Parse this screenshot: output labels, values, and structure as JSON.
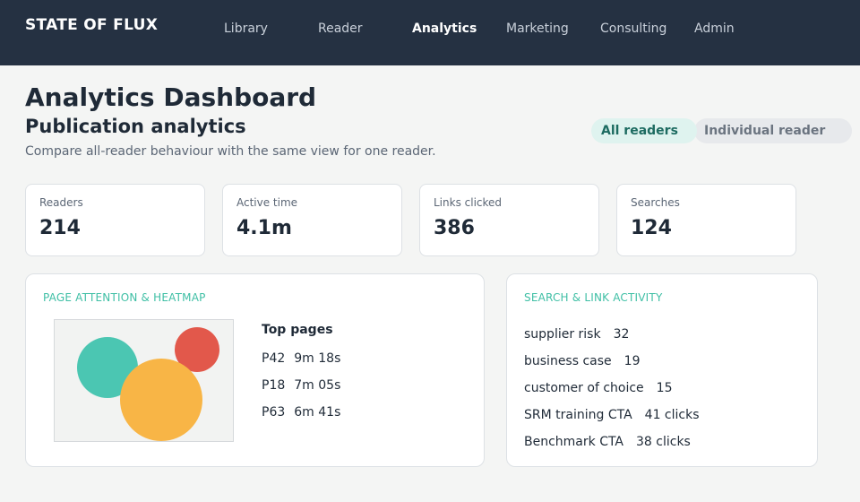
{
  "app": {
    "brand": "STATE OF FLUX"
  },
  "nav": {
    "items": [
      {
        "label": "Library",
        "active": false
      },
      {
        "label": "Reader",
        "active": false
      },
      {
        "label": "Analytics",
        "active": true
      },
      {
        "label": "Marketing",
        "active": false
      },
      {
        "label": "Consulting",
        "active": false
      },
      {
        "label": "Admin",
        "active": false
      }
    ]
  },
  "page": {
    "title": "Analytics Dashboard",
    "subtitle": "Publication analytics",
    "description": "Compare all-reader behaviour with the same view for one reader."
  },
  "view_toggle": {
    "options": [
      {
        "label": "All readers",
        "selected": true
      },
      {
        "label": "Individual reader",
        "selected": false
      }
    ]
  },
  "stats": [
    {
      "label": "Readers",
      "value": "214"
    },
    {
      "label": "Active time",
      "value": "4.1m"
    },
    {
      "label": "Links clicked",
      "value": "386"
    },
    {
      "label": "Searches",
      "value": "124"
    }
  ],
  "attention_panel": {
    "title": "PAGE ATTENTION & HEATMAP",
    "top_pages_title": "Top pages",
    "top_pages": [
      {
        "page": "P42",
        "time": "9m 18s"
      },
      {
        "page": "P18",
        "time": "7m 05s"
      },
      {
        "page": "P63",
        "time": "6m 41s"
      }
    ],
    "heatmap_colors": {
      "teal": "#4bc6b2",
      "orange": "#f8b546",
      "red": "#e2584b"
    }
  },
  "activity_panel": {
    "title": "SEARCH & LINK ACTIVITY",
    "rows": [
      {
        "term": "supplier risk",
        "count": "32"
      },
      {
        "term": "business case",
        "count": "19"
      },
      {
        "term": "customer of choice",
        "count": "15"
      },
      {
        "term": "SRM training CTA",
        "count": "41 clicks"
      },
      {
        "term": "Benchmark CTA",
        "count": "38 clicks"
      }
    ]
  }
}
